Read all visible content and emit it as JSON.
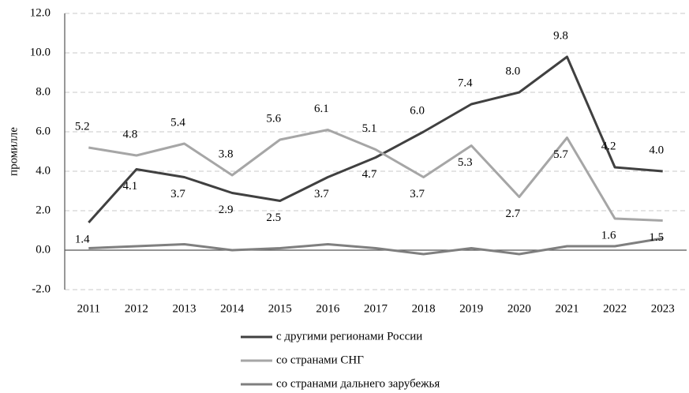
{
  "chart_data": {
    "type": "line",
    "y_label": "промилле",
    "categories": [
      "2011",
      "2012",
      "2013",
      "2014",
      "2015",
      "2016",
      "2017",
      "2018",
      "2019",
      "2020",
      "2021",
      "2022",
      "2023"
    ],
    "series": [
      {
        "name": "с другими регионами России",
        "color": "#404040",
        "values": [
          1.4,
          4.1,
          3.7,
          2.9,
          2.5,
          3.7,
          4.7,
          6.0,
          7.4,
          8.0,
          9.8,
          4.2,
          4.0
        ],
        "value_labels": [
          "1.4",
          "4.1",
          "3.7",
          "2.9",
          "2.5",
          "3.7",
          "4.7",
          "6.0",
          "7.4",
          "8.0",
          "9.8",
          "4.2",
          "4.0"
        ]
      },
      {
        "name": "со странами СНГ",
        "color": "#a6a6a6",
        "values": [
          5.2,
          4.8,
          5.4,
          3.8,
          5.6,
          6.1,
          5.1,
          3.7,
          5.3,
          2.7,
          5.7,
          1.6,
          1.5
        ],
        "value_labels": [
          "5.2",
          "4.8",
          "5.4",
          "3.8",
          "5.6",
          "6.1",
          "5.1",
          "3.7",
          "5.3",
          "2.7",
          "5.7",
          "1.6",
          "1.5"
        ]
      },
      {
        "name": "со странами дальнего зарубежья",
        "color": "#7f7f7f",
        "values": [
          0.1,
          0.2,
          0.3,
          0.0,
          0.1,
          0.3,
          0.1,
          -0.2,
          0.1,
          -0.2,
          0.2,
          0.2,
          0.6
        ]
      }
    ],
    "ylim": [
      -2,
      12
    ],
    "yticks": [
      {
        "value": -2,
        "label": "-2.0"
      },
      {
        "value": 0,
        "label": "0.0"
      },
      {
        "value": 2,
        "label": "2.0"
      },
      {
        "value": 4,
        "label": "4.0"
      },
      {
        "value": 6,
        "label": "6.0"
      },
      {
        "value": 8,
        "label": "8.0"
      },
      {
        "value": 10,
        "label": "10.0"
      },
      {
        "value": 12,
        "label": "12.0"
      }
    ],
    "grid": true,
    "legend": "bottom"
  }
}
